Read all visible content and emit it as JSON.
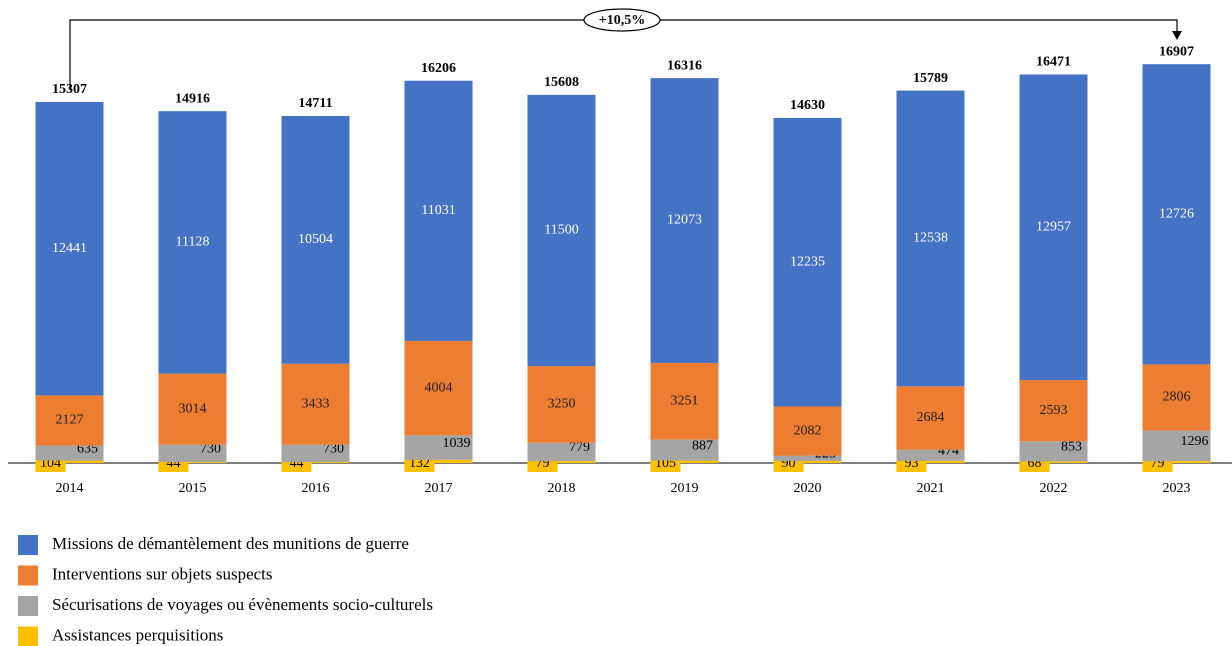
{
  "chart_data": {
    "type": "stacked_bar",
    "categories": [
      "2014",
      "2015",
      "2016",
      "2017",
      "2018",
      "2019",
      "2020",
      "2021",
      "2022",
      "2023"
    ],
    "series": [
      {
        "name": "Assistances perquisitions",
        "color": "#ffc000",
        "values": [
          104,
          44,
          44,
          132,
          79,
          105,
          90,
          93,
          68,
          79
        ]
      },
      {
        "name": "Sécurisations de voyages ou évènements socio-culturels",
        "color": "#a5a5a5",
        "values": [
          635,
          730,
          730,
          1039,
          779,
          887,
          223,
          474,
          853,
          1296
        ]
      },
      {
        "name": "Interventions sur objets suspects",
        "color": "#ed7d31",
        "values": [
          2127,
          3014,
          3433,
          4004,
          3250,
          3251,
          2082,
          2684,
          2593,
          2806
        ]
      },
      {
        "name": "Missions de démantèlement des munitions de guerre",
        "color": "#4472c4",
        "values": [
          12441,
          11128,
          10504,
          11031,
          11500,
          12073,
          12235,
          12538,
          12957,
          12726
        ]
      }
    ],
    "totals": [
      15307,
      14916,
      14711,
      16206,
      15608,
      16316,
      14630,
      15789,
      16471,
      16907
    ],
    "annotation": "+10,5%",
    "ylim": [
      0,
      17000
    ]
  }
}
